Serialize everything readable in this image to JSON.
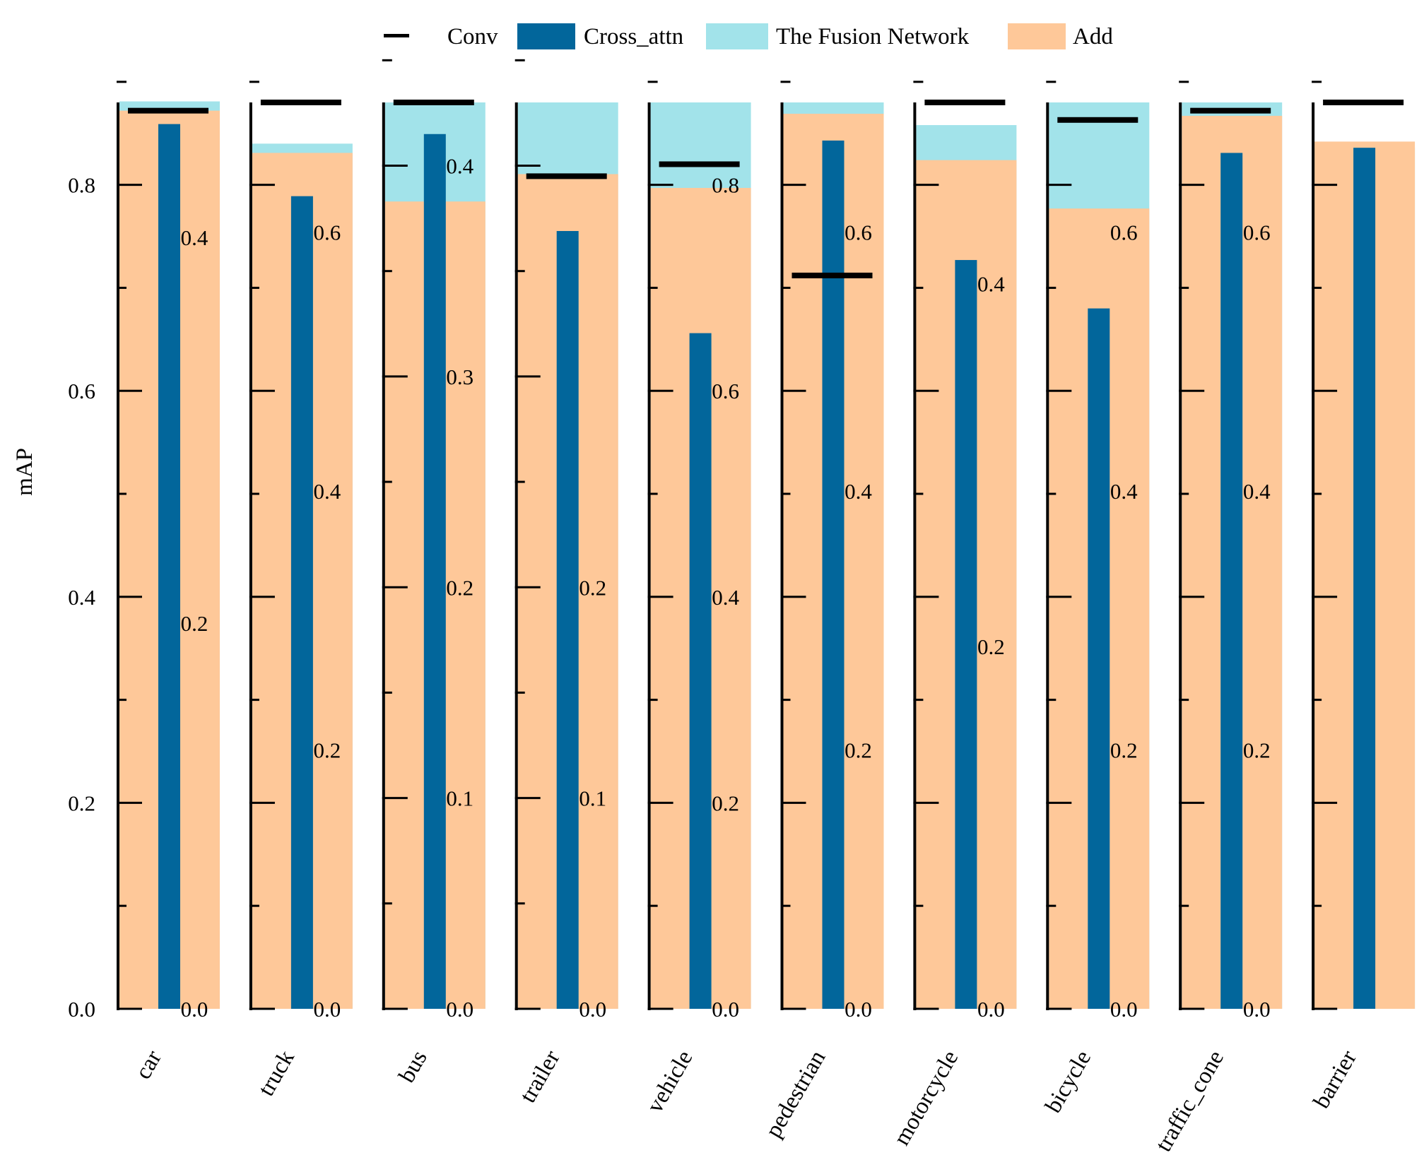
{
  "chart_data": {
    "type": "bar",
    "ylabel": "mAP",
    "legend_position": "top-center",
    "categories": [
      "car",
      "truck",
      "bus",
      "trailer",
      "vehicle",
      "pedestrian",
      "motorcycle",
      "bicycle",
      "traffic_cone",
      "barrier"
    ],
    "series": [
      {
        "name": "Conv",
        "style": "line",
        "color": "#000000"
      },
      {
        "name": "Cross_attn",
        "style": "bar",
        "color": "#02669b"
      },
      {
        "name": "The Fusion Network",
        "style": "area",
        "color": "#a2e3ea"
      },
      {
        "name": "Add",
        "style": "area",
        "color": "#fec899"
      }
    ],
    "panels": [
      {
        "category": "car",
        "ylim": [
          0,
          0.88
        ],
        "left_ticks": [
          0.0,
          0.2,
          0.4,
          0.6,
          0.8
        ],
        "right_ticks": [
          0.0,
          0.2,
          0.4
        ],
        "right_scale": 0.47,
        "conv": 0.872,
        "cross_attn": 0.859,
        "fusion": 0.881,
        "add": 0.872
      },
      {
        "category": "truck",
        "ylim": [
          0,
          0.88
        ],
        "right_ticks": [
          0.0,
          0.2,
          0.4,
          0.6
        ],
        "right_scale": 0.7,
        "conv": 0.88,
        "cross_attn": 0.789,
        "fusion": 0.84,
        "add": 0.831
      },
      {
        "category": "bus",
        "ylim": [
          0,
          0.43
        ],
        "right_ticks": [
          0.0,
          0.1,
          0.2,
          0.3,
          0.4
        ],
        "right_scale": 0.43,
        "conv": 0.43,
        "cross_attn": 0.415,
        "fusion": 0.43,
        "add": 0.383
      },
      {
        "category": "trailer",
        "ylim": [
          0,
          0.43
        ],
        "right_ticks": [
          0.0,
          0.1,
          0.2
        ],
        "right_scale": 0.43,
        "conv": 0.395,
        "cross_attn": 0.369,
        "fusion": 0.43,
        "add": 0.396
      },
      {
        "category": "vehicle",
        "ylim": [
          0,
          0.88
        ],
        "right_ticks": [
          0.0,
          0.2,
          0.4,
          0.6,
          0.8
        ],
        "right_scale": 0.88,
        "conv": 0.82,
        "cross_attn": 0.656,
        "fusion": 0.88,
        "add": 0.797
      },
      {
        "category": "pedestrian",
        "ylim": [
          0,
          0.88
        ],
        "right_ticks": [
          0.0,
          0.2,
          0.4,
          0.6
        ],
        "right_scale": 0.7,
        "conv": 0.712,
        "cross_attn": 0.843,
        "fusion": 0.88,
        "add": 0.869
      },
      {
        "category": "motorcycle",
        "ylim": [
          0,
          0.88
        ],
        "right_ticks": [
          0.0,
          0.2,
          0.4
        ],
        "right_scale": 0.5,
        "conv": 0.88,
        "cross_attn": 0.727,
        "fusion": 0.858,
        "add": 0.824
      },
      {
        "category": "bicycle",
        "ylim": [
          0,
          0.88
        ],
        "right_ticks": [
          0.0,
          0.2,
          0.4,
          0.6
        ],
        "right_scale": 0.7,
        "conv": 0.863,
        "cross_attn": 0.68,
        "fusion": 0.88,
        "add": 0.777
      },
      {
        "category": "traffic_cone",
        "ylim": [
          0,
          0.88
        ],
        "right_ticks": [
          0.0,
          0.2,
          0.4,
          0.6
        ],
        "right_scale": 0.7,
        "conv": 0.872,
        "cross_attn": 0.831,
        "fusion": 0.88,
        "add": 0.867
      },
      {
        "category": "barrier",
        "ylim": [
          0,
          0.88
        ],
        "right_ticks": [],
        "right_scale": 0.7,
        "conv": 0.88,
        "cross_attn": 0.836,
        "fusion": 0.836,
        "add": 0.842
      }
    ]
  }
}
